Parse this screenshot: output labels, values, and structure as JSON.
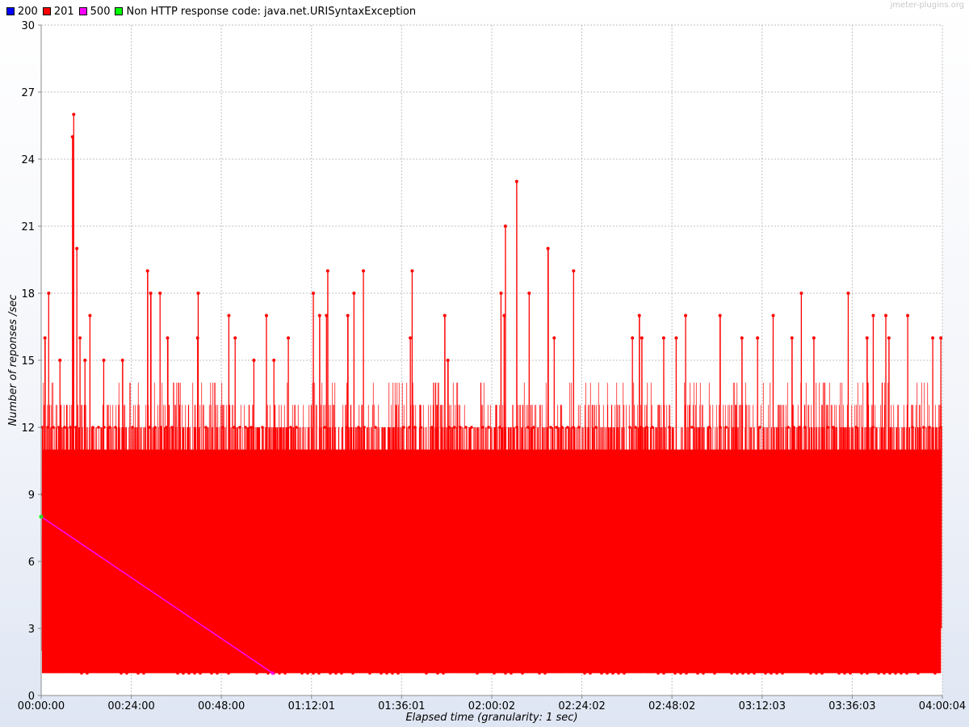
{
  "watermark": "jmeter-plugins.org",
  "legend": [
    {
      "label": "200",
      "color": "#0000ff"
    },
    {
      "label": "201",
      "color": "#ff0000"
    },
    {
      "label": "500",
      "color": "#ff00ff"
    },
    {
      "label": "Non HTTP response code: java.net.URISyntaxException",
      "color": "#00ff00"
    }
  ],
  "chart_data": {
    "type": "line",
    "xlabel": "Elapsed time (granularity: 1 sec)",
    "ylabel": "Number of reponses /sec",
    "xlim": [
      0,
      14404
    ],
    "ylim": [
      0,
      30
    ],
    "grid": true,
    "legend_position": "top-left",
    "x_tick_values": [
      0,
      1440,
      2880,
      4321,
      5761,
      7202,
      8642,
      10082,
      11523,
      12963,
      14404
    ],
    "x_tick_labels": [
      "00:00:00",
      "00:24:00",
      "00:48:00",
      "01:12:01",
      "01:36:01",
      "02:00:02",
      "02:24:02",
      "02:48:02",
      "03:12:03",
      "03:36:03",
      "04:00:04"
    ],
    "y_tick_values": [
      0,
      3,
      6,
      9,
      12,
      15,
      18,
      21,
      24,
      27,
      30
    ],
    "y_tick_labels": [
      "0",
      "3",
      "6",
      "9",
      "12",
      "15",
      "18",
      "21",
      "24",
      "27",
      "30"
    ],
    "series": [
      {
        "name": "201",
        "color": "#ff0000",
        "band": {
          "low": 1,
          "high": 11
        },
        "peaks_x": [
          20,
          60,
          120,
          300,
          500,
          520,
          570,
          620,
          700,
          780,
          1000,
          1300,
          1700,
          1750,
          1900,
          2020,
          2500,
          2510,
          3000,
          3100,
          3400,
          3600,
          3720,
          3950,
          4350,
          4450,
          4560,
          4580,
          4900,
          5000,
          5150,
          5900,
          5930,
          6450,
          6500,
          7350,
          7400,
          7420,
          7600,
          7800,
          8100,
          8200,
          8510,
          9450,
          9560,
          9600,
          9950,
          10150,
          10300,
          10850,
          11200,
          11450,
          11700,
          12000,
          12150,
          12350,
          12900,
          13200,
          13300,
          13500,
          13550,
          13850,
          14250,
          14380
        ],
        "peaks_y": [
          9,
          16,
          18,
          15,
          25,
          26,
          20,
          16,
          15,
          17,
          15,
          15,
          19,
          18,
          18,
          16,
          16,
          18,
          17,
          16,
          15,
          17,
          15,
          16,
          18,
          17,
          17,
          19,
          17,
          18,
          19,
          16,
          19,
          17,
          15,
          18,
          17,
          21,
          23,
          18,
          20,
          16,
          19,
          16,
          17,
          16,
          16,
          16,
          17,
          17,
          16,
          16,
          17,
          16,
          18,
          16,
          18,
          16,
          17,
          17,
          16,
          17,
          16,
          16
        ]
      },
      {
        "name": "500",
        "color": "#ff00ff",
        "x": [
          0,
          3700
        ],
        "y": [
          8,
          1
        ]
      },
      {
        "name": "Non HTTP response code: java.net.URISyntaxException",
        "color": "#00ff00",
        "x": [
          0
        ],
        "y": [
          8
        ]
      }
    ]
  }
}
